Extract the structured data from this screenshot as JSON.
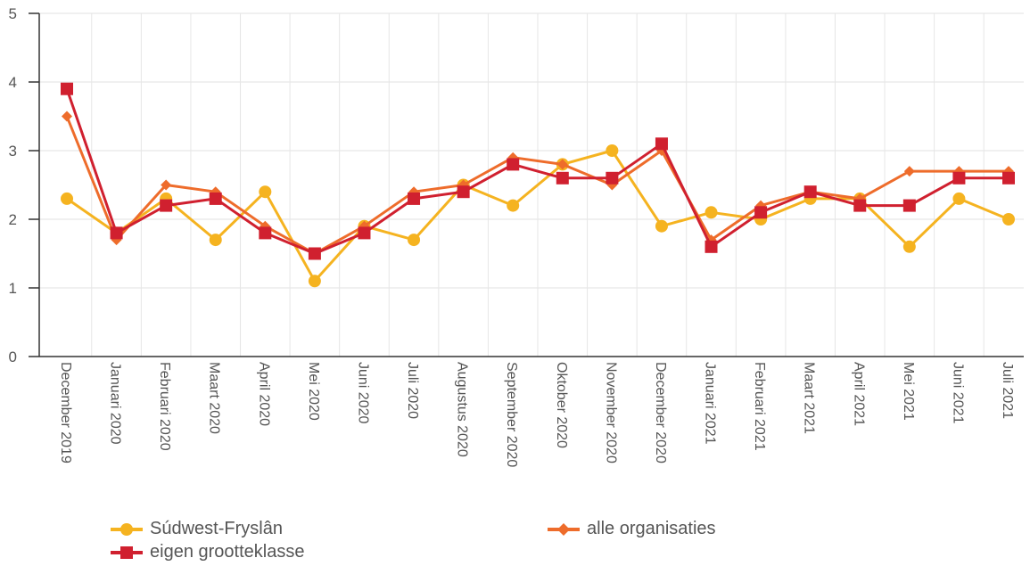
{
  "chart_data": {
    "type": "line",
    "categories": [
      "December 2019",
      "Januari 2020",
      "Februari 2020",
      "Maart 2020",
      "April 2020",
      "Mei 2020",
      "Juni 2020",
      "Juli 2020",
      "Augustus 2020",
      "September 2020",
      "Oktober 2020",
      "November 2020",
      "December 2020",
      "Januari 2021",
      "Februari 2021",
      "Maart 2021",
      "April 2021",
      "Mei 2021",
      "Juni 2021",
      "Juli 2021"
    ],
    "y_ticks": [
      "0",
      "1",
      "2",
      "3",
      "4",
      "5"
    ],
    "ylim": [
      0,
      5
    ],
    "grid": true,
    "legend_position": "bottom",
    "series": [
      {
        "name": "Súdwest-Fryslân",
        "color": "#F5B320",
        "marker": "circle",
        "values": [
          2.3,
          1.8,
          2.3,
          1.7,
          2.4,
          1.1,
          1.9,
          1.7,
          2.5,
          2.2,
          2.8,
          3.0,
          1.9,
          2.1,
          2.0,
          2.3,
          2.3,
          1.6,
          2.3,
          2.0
        ]
      },
      {
        "name": "alle organisaties",
        "color": "#EE6C2B",
        "marker": "diamond",
        "values": [
          3.5,
          1.7,
          2.5,
          2.4,
          1.9,
          1.5,
          1.9,
          2.4,
          2.5,
          2.9,
          2.8,
          2.5,
          3.0,
          1.7,
          2.2,
          2.4,
          2.3,
          2.7,
          2.7,
          2.7
        ]
      },
      {
        "name": "eigen grootteklasse",
        "color": "#D0202F",
        "marker": "square",
        "values": [
          3.9,
          1.8,
          2.2,
          2.3,
          1.8,
          1.5,
          1.8,
          2.3,
          2.4,
          2.8,
          2.6,
          2.6,
          3.1,
          1.6,
          2.1,
          2.4,
          2.2,
          2.2,
          2.6,
          2.6
        ]
      }
    ]
  }
}
